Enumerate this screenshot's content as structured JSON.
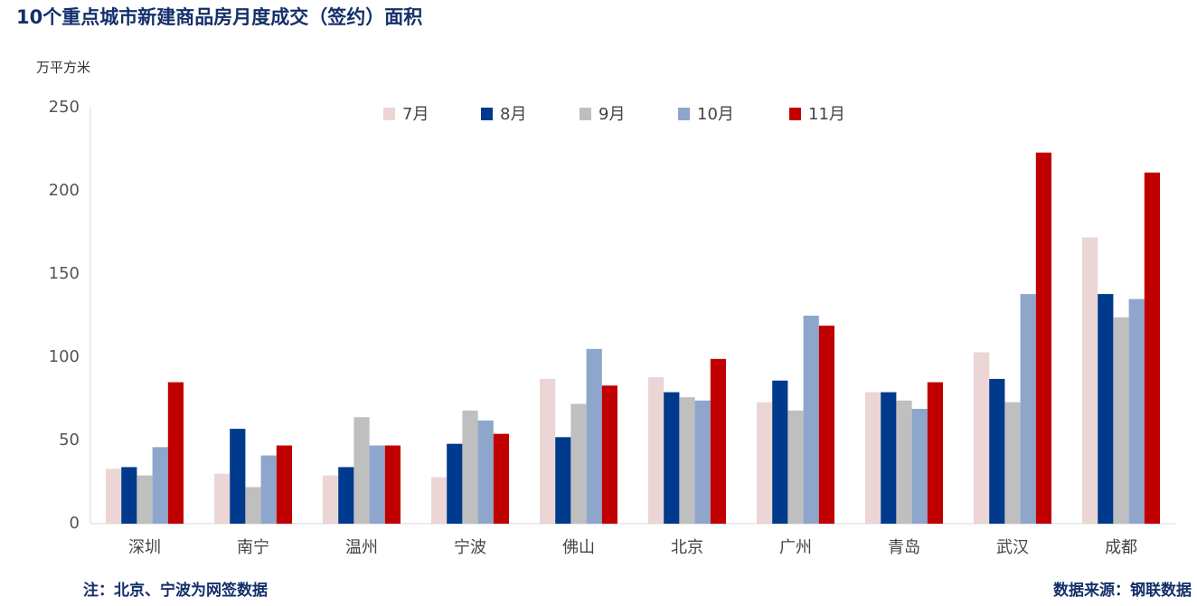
{
  "chart_data": {
    "type": "bar",
    "title": "10个重点城市新建商品房月度成交（签约）面积",
    "y_label": "万平方米",
    "note": "注：北京、宁波为网签数据",
    "source": "数据来源：钢联数据",
    "categories": [
      "深圳",
      "南宁",
      "温州",
      "宁波",
      "佛山",
      "北京",
      "广州",
      "青岛",
      "武汉",
      "成都"
    ],
    "series": [
      {
        "name": "7月",
        "color": "#ecd5d5",
        "values": [
          33,
          30,
          29,
          28,
          87,
          88,
          73,
          79,
          103,
          172
        ]
      },
      {
        "name": "8月",
        "color": "#003a8c",
        "values": [
          34,
          57,
          34,
          48,
          52,
          79,
          86,
          79,
          87,
          138
        ]
      },
      {
        "name": "9月",
        "color": "#bfbfbf",
        "values": [
          29,
          22,
          64,
          68,
          72,
          76,
          68,
          74,
          73,
          124
        ]
      },
      {
        "name": "10月",
        "color": "#8ea6cc",
        "values": [
          46,
          41,
          47,
          62,
          105,
          74,
          125,
          69,
          138,
          135
        ]
      },
      {
        "name": "11月",
        "color": "#c00000",
        "values": [
          85,
          47,
          47,
          54,
          83,
          99,
          119,
          85,
          223,
          211
        ]
      }
    ],
    "ylim": [
      0,
      250
    ],
    "yticks": [
      0,
      50,
      100,
      150,
      200,
      250
    ],
    "grid": false,
    "legend": "top"
  }
}
